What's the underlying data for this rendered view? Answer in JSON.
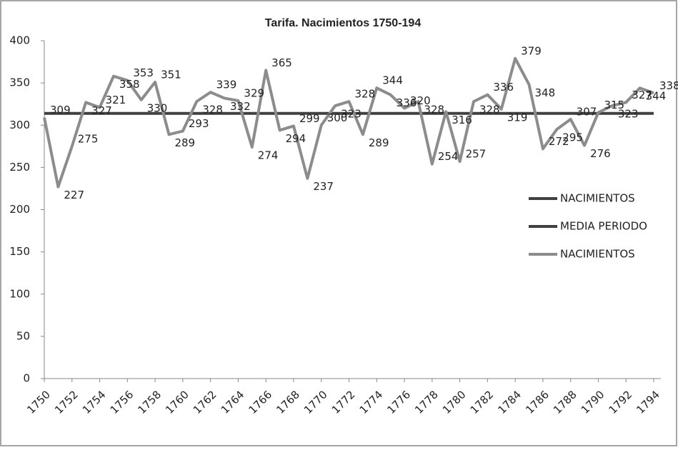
{
  "chart_data": {
    "type": "line",
    "title": "Tarifa. Nacimientos 1750-194",
    "x": [
      1750,
      1751,
      1752,
      1753,
      1754,
      1755,
      1756,
      1757,
      1758,
      1759,
      1760,
      1761,
      1762,
      1763,
      1764,
      1765,
      1766,
      1767,
      1768,
      1769,
      1770,
      1771,
      1772,
      1773,
      1774,
      1775,
      1776,
      1777,
      1778,
      1779,
      1780,
      1781,
      1782,
      1783,
      1784,
      1785,
      1786,
      1787,
      1788,
      1789,
      1790,
      1791,
      1792,
      1793,
      1794
    ],
    "series": [
      {
        "name": "NACIMIENTOS",
        "color": "#404040",
        "values": [
          null,
          null,
          null,
          null,
          null,
          null,
          null,
          null,
          null,
          null,
          null,
          null,
          null,
          null,
          null,
          null,
          null,
          null,
          null,
          null,
          null,
          null,
          null,
          null,
          null,
          null,
          null,
          null,
          null,
          null,
          null,
          null,
          null,
          null,
          null,
          null,
          null,
          null,
          null,
          null,
          null,
          null,
          null,
          null,
          null
        ]
      },
      {
        "name": "MEDIA PERIODO",
        "color": "#404040",
        "values": [
          314,
          314,
          314,
          314,
          314,
          314,
          314,
          314,
          314,
          314,
          314,
          314,
          314,
          314,
          314,
          314,
          314,
          314,
          314,
          314,
          314,
          314,
          314,
          314,
          314,
          314,
          314,
          314,
          314,
          314,
          314,
          314,
          314,
          314,
          314,
          314,
          314,
          314,
          314,
          314,
          314,
          314,
          314,
          314,
          314
        ]
      },
      {
        "name": "NACIMIENTOS",
        "color": "#8c8c8c",
        "values": [
          309,
          227,
          275,
          327,
          321,
          358,
          353,
          330,
          351,
          289,
          293,
          328,
          339,
          332,
          329,
          274,
          365,
          294,
          299,
          237,
          300,
          323,
          328,
          289,
          344,
          336,
          320,
          328,
          254,
          316,
          257,
          328,
          336,
          319,
          379,
          348,
          272,
          295,
          307,
          276,
          315,
          323,
          327,
          344,
          338
        ]
      }
    ],
    "data_labels_series": 2,
    "xlim": [
      1750,
      1794
    ],
    "xticks": [
      1750,
      1752,
      1754,
      1756,
      1758,
      1760,
      1762,
      1764,
      1766,
      1768,
      1770,
      1772,
      1774,
      1776,
      1778,
      1780,
      1782,
      1784,
      1786,
      1788,
      1790,
      1792,
      1794
    ],
    "ylim": [
      0,
      400
    ],
    "yticks": [
      0,
      50,
      100,
      150,
      200,
      250,
      300,
      350,
      400
    ],
    "grid": false,
    "legend": "right"
  }
}
